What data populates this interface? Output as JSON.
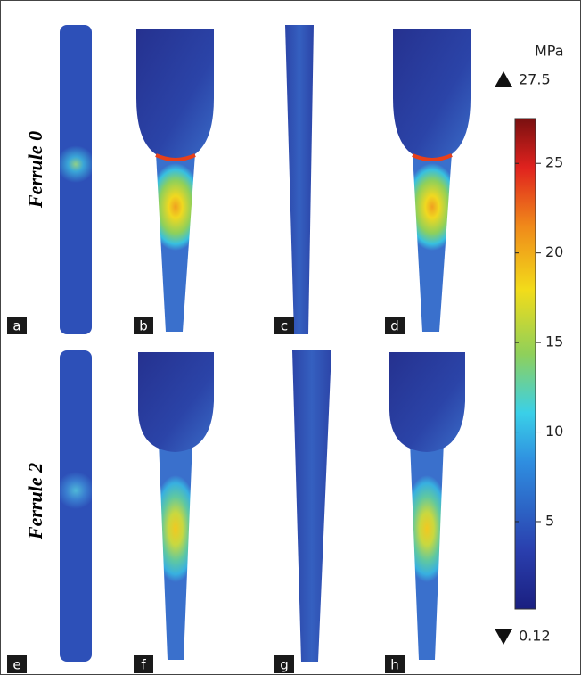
{
  "row_labels": [
    "Ferrule 0",
    "Ferrule 2"
  ],
  "panel_labels": [
    "a",
    "b",
    "c",
    "d",
    "e",
    "f",
    "g",
    "h"
  ],
  "colorbar": {
    "unit": "MPa",
    "max": 27.5,
    "min": 0.12,
    "ticks": [
      5,
      10,
      15,
      20,
      25
    ]
  }
}
